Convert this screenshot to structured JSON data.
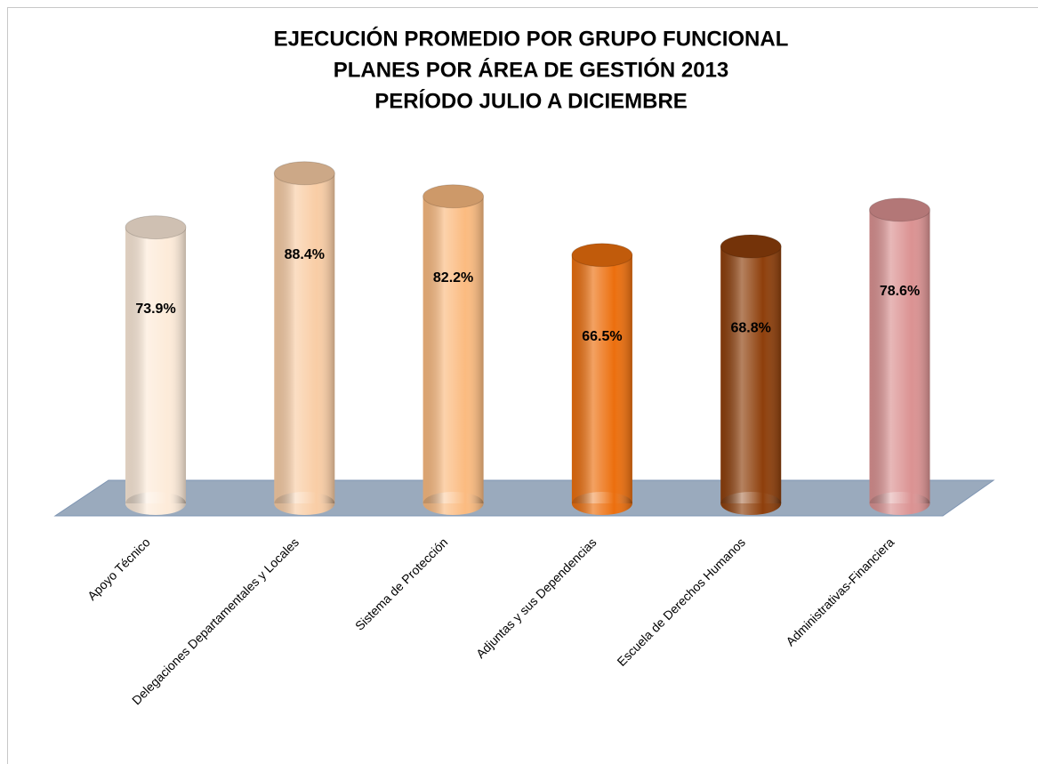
{
  "chart_data": {
    "type": "bar3d",
    "title": [
      "EJECUCIÓN PROMEDIO POR GRUPO FUNCIONAL",
      "PLANES POR ÁREA DE GESTIÓN 2013",
      "PERÍODO JULIO A DICIEMBRE"
    ],
    "categories": [
      "Apoyo Técnico",
      "Delegaciones Departamentales y Locales",
      "Sistema de Protección",
      "Adjuntas y sus Dependencias",
      "Escuela de Derechos Humanos",
      "Administrativas-Financiera"
    ],
    "values": [
      73.9,
      88.4,
      82.2,
      66.5,
      68.8,
      78.6
    ],
    "value_labels": [
      "73.9%",
      "88.4%",
      "82.2%",
      "66.5%",
      "68.8%",
      "78.6%"
    ],
    "colors": [
      "#fdebd9",
      "#f9cda5",
      "#fbbb80",
      "#ec6f0e",
      "#8e3f0b",
      "#db9292"
    ]
  }
}
